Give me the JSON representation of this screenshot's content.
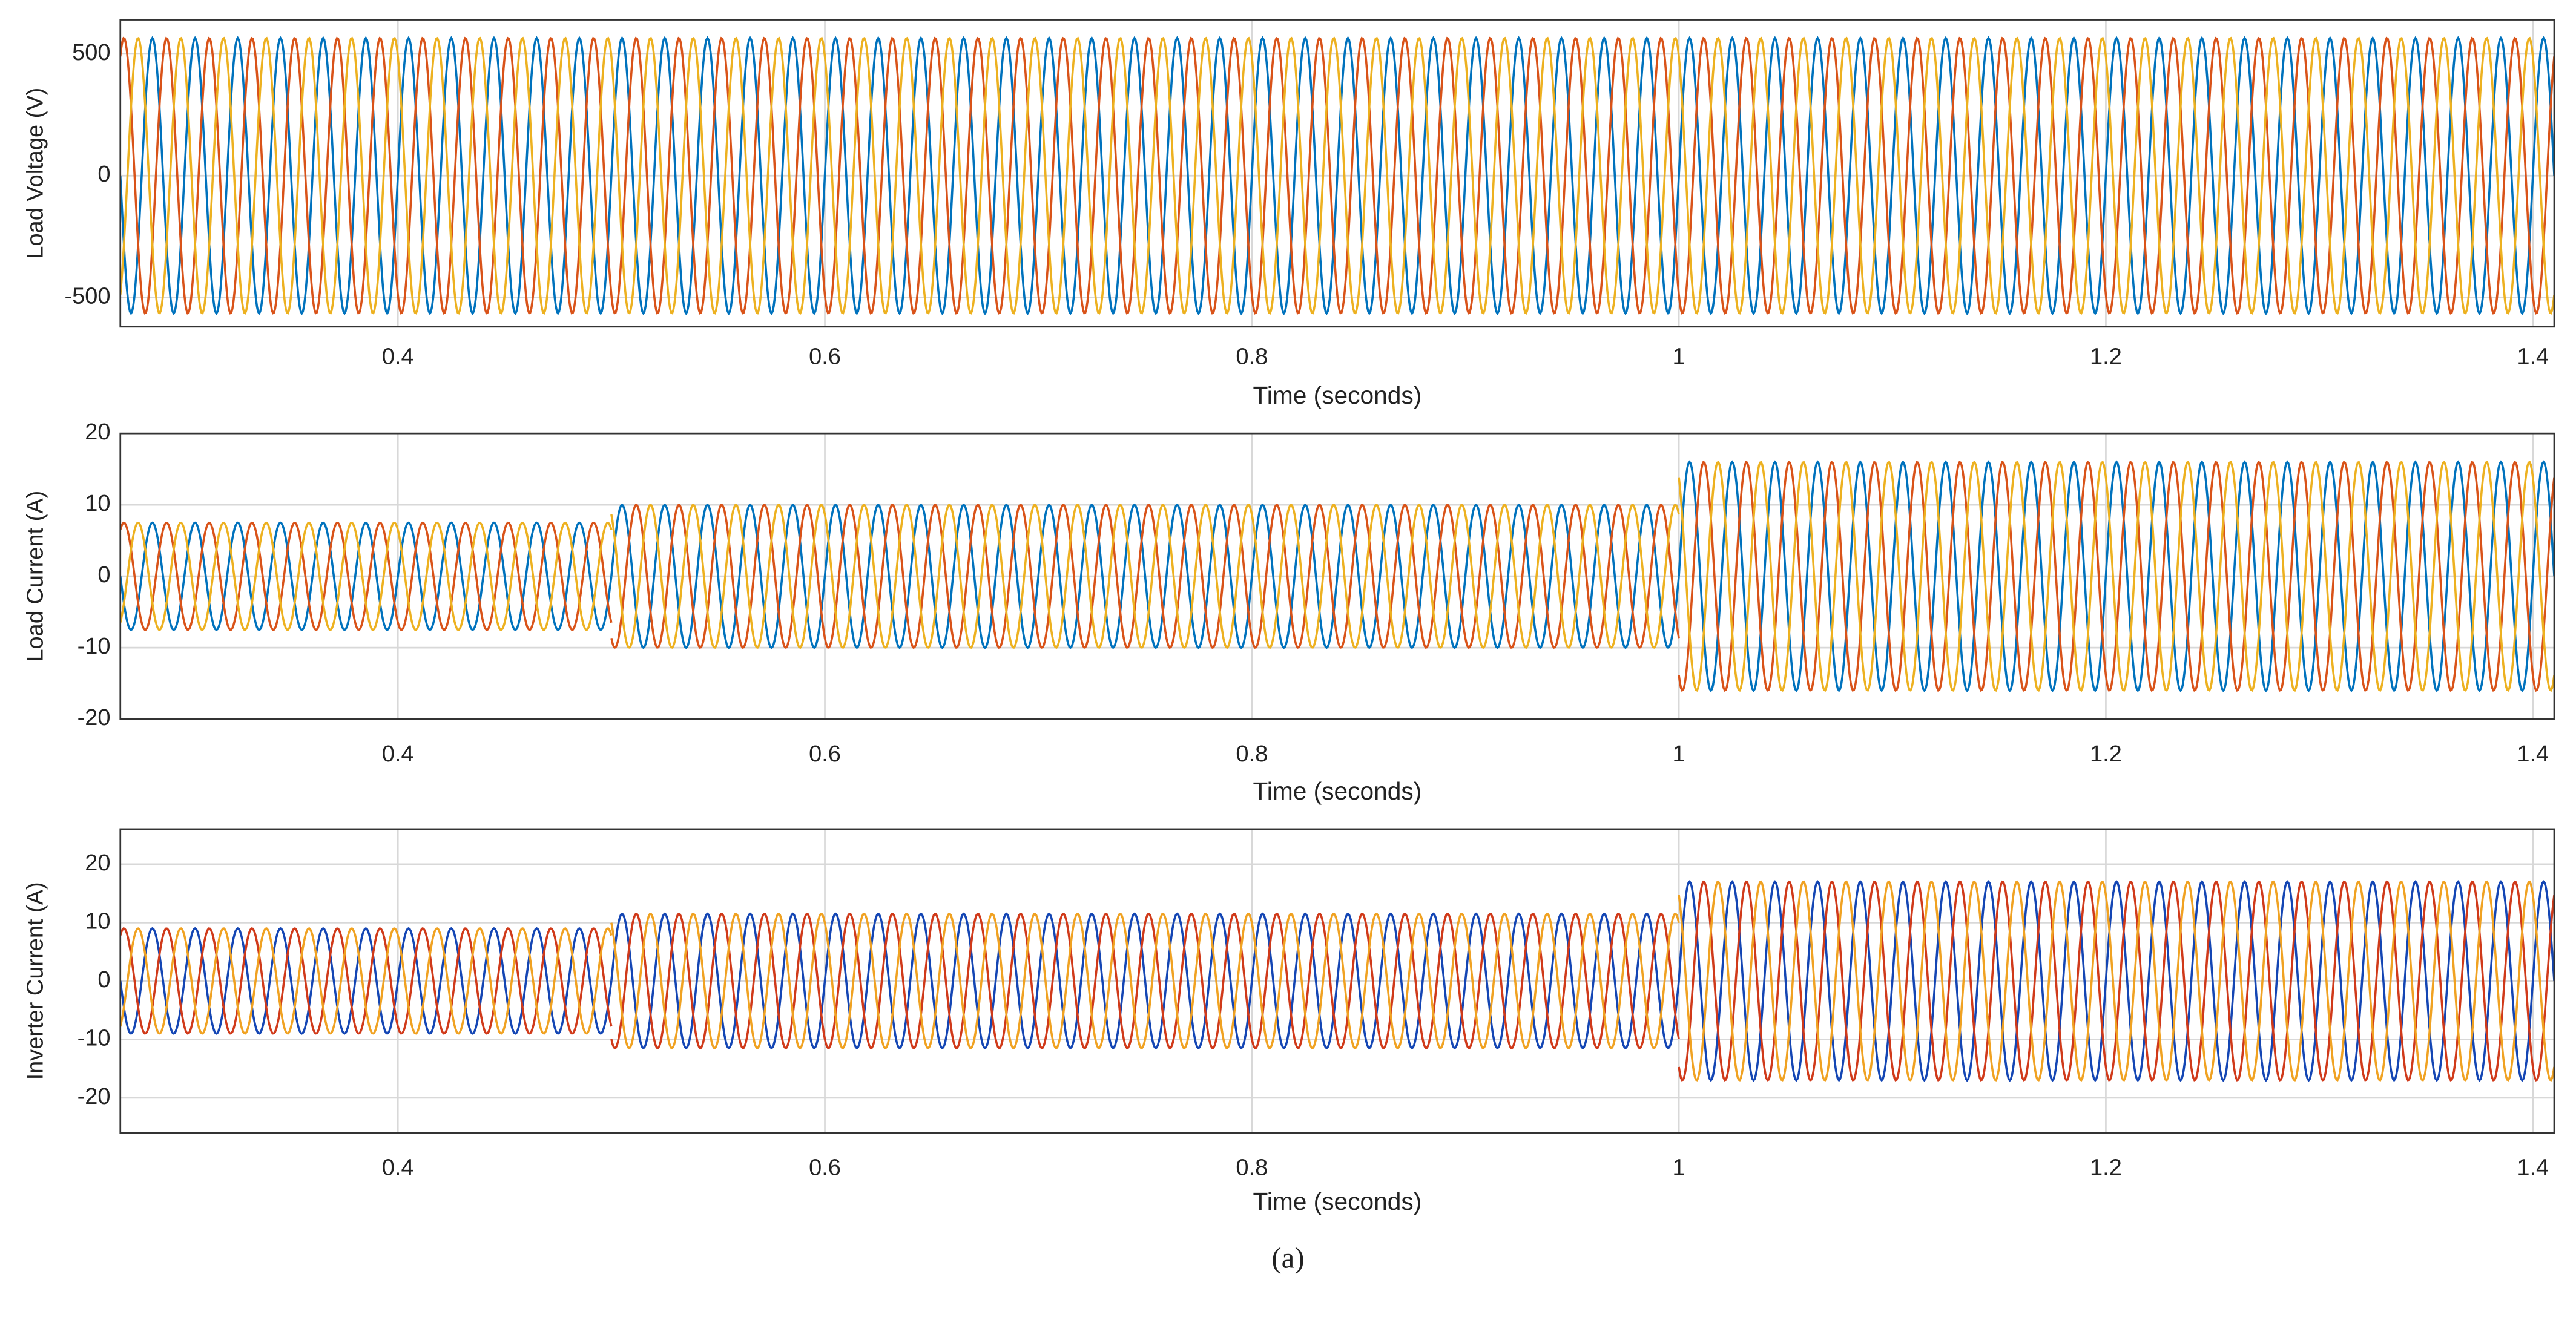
{
  "chart_data": [
    {
      "type": "line",
      "ylabel": "Load Voltage (V)",
      "xlabel": "Time (seconds)",
      "xlim": [
        0.27,
        1.41
      ],
      "ylim": [
        -620,
        640
      ],
      "xticks": [
        0.4,
        0.6,
        0.8,
        1,
        1.2,
        1.4
      ],
      "yticks": [
        -500,
        0,
        500
      ],
      "grid": true,
      "frequency": 50,
      "series": [
        {
          "color": "#0072bd",
          "phase": 0,
          "segments": [
            {
              "start": 0.27,
              "end": 1.41,
              "amplitude": 565
            }
          ]
        },
        {
          "color": "#d95319",
          "phase": -120,
          "segments": [
            {
              "start": 0.27,
              "end": 1.41,
              "amplitude": 565
            }
          ]
        },
        {
          "color": "#edb120",
          "phase": 120,
          "segments": [
            {
              "start": 0.27,
              "end": 1.41,
              "amplitude": 565
            }
          ]
        }
      ]
    },
    {
      "type": "line",
      "ylabel": "Load Current (A)",
      "xlabel": "Time (seconds)",
      "xlim": [
        0.27,
        1.41
      ],
      "ylim": [
        -20,
        20
      ],
      "xticks": [
        0.4,
        0.6,
        0.8,
        1,
        1.2,
        1.4
      ],
      "yticks": [
        -20,
        -10,
        0,
        10,
        20
      ],
      "grid": true,
      "frequency": 50,
      "series": [
        {
          "color": "#0072bd",
          "phase": 0,
          "segments": [
            {
              "start": 0.27,
              "end": 0.5,
              "amplitude": 7.5
            },
            {
              "start": 0.5,
              "end": 1,
              "amplitude": 10
            },
            {
              "start": 1,
              "end": 1.41,
              "amplitude": 16
            }
          ]
        },
        {
          "color": "#d95319",
          "phase": -120,
          "segments": [
            {
              "start": 0.27,
              "end": 0.5,
              "amplitude": 7.5
            },
            {
              "start": 0.5,
              "end": 1,
              "amplitude": 10
            },
            {
              "start": 1,
              "end": 1.41,
              "amplitude": 16
            }
          ]
        },
        {
          "color": "#edb120",
          "phase": 120,
          "segments": [
            {
              "start": 0.27,
              "end": 0.5,
              "amplitude": 7.5
            },
            {
              "start": 0.5,
              "end": 1,
              "amplitude": 10
            },
            {
              "start": 1,
              "end": 1.41,
              "amplitude": 16
            }
          ]
        }
      ]
    },
    {
      "type": "line",
      "ylabel": "Inverter Current (A)",
      "xlabel": "Time (seconds)",
      "xlim": [
        0.27,
        1.41
      ],
      "ylim": [
        -26,
        26
      ],
      "xticks": [
        0.4,
        0.6,
        0.8,
        1,
        1.2,
        1.4
      ],
      "yticks": [
        -20,
        -10,
        0,
        10,
        20
      ],
      "grid": true,
      "frequency": 50,
      "series": [
        {
          "color": "#1446b4",
          "phase": 0,
          "segments": [
            {
              "start": 0.27,
              "end": 0.5,
              "amplitude": 9
            },
            {
              "start": 0.5,
              "end": 1,
              "amplitude": 11.5
            },
            {
              "start": 1,
              "end": 1.41,
              "amplitude": 17
            }
          ]
        },
        {
          "color": "#d03a1a",
          "phase": -120,
          "segments": [
            {
              "start": 0.27,
              "end": 0.5,
              "amplitude": 9
            },
            {
              "start": 0.5,
              "end": 1,
              "amplitude": 11.5
            },
            {
              "start": 1,
              "end": 1.41,
              "amplitude": 17
            }
          ]
        },
        {
          "color": "#f0a222",
          "phase": 120,
          "segments": [
            {
              "start": 0.27,
              "end": 0.5,
              "amplitude": 9
            },
            {
              "start": 0.5,
              "end": 1,
              "amplitude": 11.5
            },
            {
              "start": 1,
              "end": 1.41,
              "amplitude": 17
            }
          ]
        }
      ]
    }
  ],
  "caption": "(a)"
}
